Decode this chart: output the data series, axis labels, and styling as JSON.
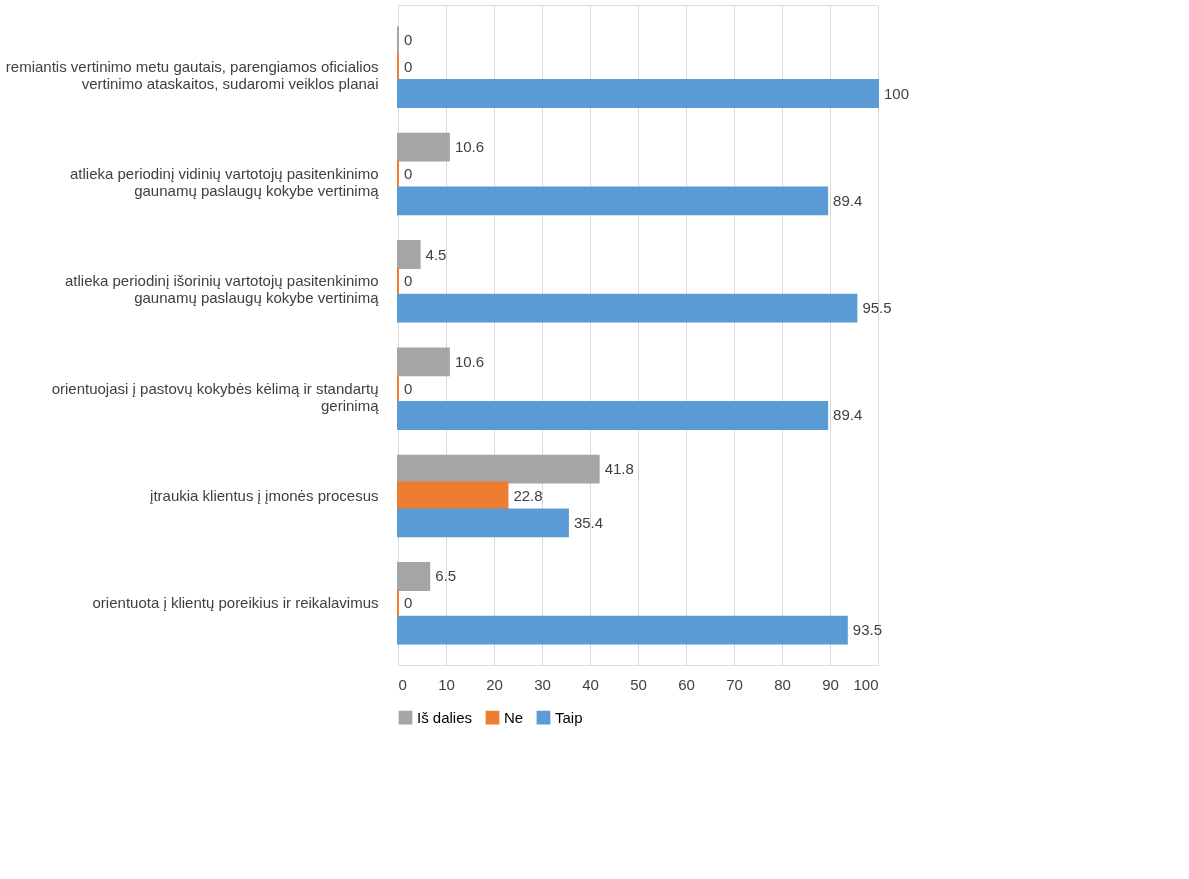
{
  "chart_data": {
    "type": "bar",
    "orientation": "horizontal",
    "categories": [
      "remiantis vertinimo metu gautais, parengiamos oficialios vertinimo ataskaitos, sudaromi veiklos planai",
      "atlieka periodinį vidinių vartotojų pasitenkinimo gaunamų paslaugų kokybe vertinimą",
      "atlieka periodinį išorinių vartotojų pasitenkinimo gaunamų paslaugų kokybe vertinimą",
      "orientuojasi į pastovų kokybės kėlimą ir standartų gerinimą",
      "įtraukia klientus į įmonės procesus",
      "orientuota į klientų poreikius ir reikalavimus"
    ],
    "series": [
      {
        "name": "Iš dalies",
        "color": "#a5a5a5",
        "values": [
          0,
          10.6,
          4.5,
          10.6,
          41.8,
          6.5
        ]
      },
      {
        "name": "Ne",
        "color": "#ed7d31",
        "values": [
          0,
          0,
          0,
          0,
          22.8,
          0
        ]
      },
      {
        "name": "Taip",
        "color": "#5b9bd5",
        "values": [
          100,
          89.4,
          95.5,
          89.4,
          35.4,
          93.5
        ]
      }
    ],
    "xlim": [
      0,
      100
    ],
    "xticks": [
      0,
      10,
      20,
      30,
      40,
      50,
      60,
      70,
      80,
      90,
      100
    ],
    "grid": "x",
    "legend": "bottom",
    "data_labels": true
  }
}
